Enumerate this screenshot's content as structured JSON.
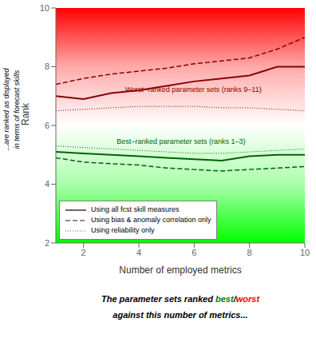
{
  "chart_data": {
    "type": "line",
    "x": [
      1,
      2,
      3,
      4,
      5,
      6,
      7,
      8,
      9,
      10
    ],
    "xlim": [
      1,
      10
    ],
    "xticks": [
      2,
      4,
      6,
      8,
      10
    ],
    "ylim": [
      2,
      10
    ],
    "yticks": [
      2,
      4,
      6,
      8,
      10
    ],
    "xlabel": "Number of employed metrics",
    "ylabel": "Rank",
    "series": [
      {
        "color": "#8B0000",
        "line_style": "solid",
        "values": [
          7.0,
          6.9,
          7.1,
          7.2,
          7.35,
          7.5,
          7.6,
          7.7,
          8.0,
          8.0
        ]
      },
      {
        "color": "#8B0000",
        "line_style": "dashed",
        "values": [
          7.4,
          7.6,
          7.75,
          7.85,
          7.95,
          8.1,
          8.2,
          8.3,
          8.6,
          9.0
        ]
      },
      {
        "color": "#8B0000",
        "line_style": "dotted",
        "values": [
          6.5,
          6.55,
          6.6,
          6.65,
          6.65,
          6.65,
          6.6,
          6.6,
          6.55,
          6.5
        ]
      },
      {
        "color": "#006400",
        "line_style": "solid",
        "values": [
          5.1,
          5.05,
          5.0,
          4.95,
          4.9,
          4.85,
          4.8,
          4.95,
          5.0,
          5.0
        ]
      },
      {
        "color": "#006400",
        "line_style": "dashed",
        "values": [
          4.9,
          4.75,
          4.7,
          4.65,
          4.55,
          4.5,
          4.45,
          4.5,
          4.55,
          4.6
        ]
      },
      {
        "color": "#006400",
        "line_style": "dotted",
        "values": [
          5.3,
          5.25,
          5.2,
          5.15,
          5.1,
          5.05,
          5.05,
          5.1,
          5.15,
          5.2
        ]
      }
    ],
    "annotations": [
      {
        "text": "Worst−ranked parameter sets (ranks 9–11)",
        "x": 3.5,
        "y": 7.15,
        "color": "#8B0000"
      },
      {
        "text": "Best−ranked parameter sets (ranks 1–3)",
        "x": 3.2,
        "y": 5.38,
        "color": "#006400"
      }
    ],
    "side_labels": [
      "...are ranked as displayed",
      "in terms of forecast skills"
    ],
    "footer": [
      [
        {
          "text": "The parameter sets ranked ",
          "color": "black"
        },
        {
          "text": "best",
          "color": "green"
        },
        {
          "text": "/",
          "color": "black"
        },
        {
          "text": "worst",
          "color": "red"
        }
      ],
      [
        {
          "text": "against this number of metrics...",
          "color": "black"
        }
      ]
    ],
    "legend": "lower left",
    "legend_entries": [
      {
        "label": "Using all fcst skill measures",
        "line_style": "solid",
        "color": "dimgray"
      },
      {
        "label": "Using bias & anomaly correlation only",
        "line_style": "dashed",
        "color": "dimgray"
      },
      {
        "label": "Using reliability only",
        "line_style": "dotted",
        "color": "dimgray"
      }
    ],
    "background_colors": [
      "#00FF00",
      "#AAFFAA",
      "#FFFFFF",
      "#FFAAAA",
      "#FF0000"
    ]
  }
}
